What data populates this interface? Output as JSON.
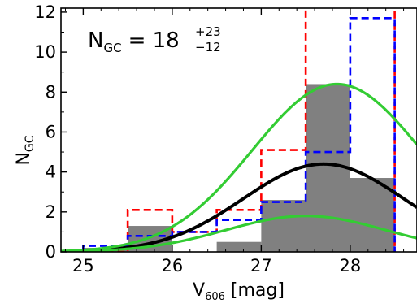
{
  "chart_data": {
    "type": "histogram",
    "xlabel": "V606 [mag]",
    "xlabel_parts": {
      "main": "V",
      "sub": "606",
      "rest": " [mag]"
    },
    "ylabel": "NGC",
    "ylabel_parts": {
      "main": "N",
      "sub": "GC"
    },
    "xlim": [
      24.75,
      28.75
    ],
    "ylim": [
      0,
      12.2
    ],
    "x_ticks": [
      25,
      26,
      27,
      28
    ],
    "y_ticks": [
      0,
      2,
      4,
      6,
      8,
      10,
      12
    ],
    "bin_edges": [
      25.0,
      25.5,
      26.0,
      26.5,
      27.0,
      27.5,
      28.0,
      28.5
    ],
    "annotation": {
      "text": "NGC = 18 +23 −12",
      "name": "N",
      "name_sub": "GC",
      "equals": "= 18",
      "plus": "+23",
      "minus": "−12"
    },
    "series": [
      {
        "kind": "bars",
        "color": "#808080",
        "values": [
          0.2,
          1.3,
          0.0,
          0.5,
          2.6,
          8.4,
          3.7
        ]
      },
      {
        "kind": "step",
        "style": "dashed",
        "color": "#ff0000",
        "values": [
          0.0,
          2.1,
          1.0,
          2.1,
          5.1,
          12.5,
          12.5
        ]
      },
      {
        "kind": "step",
        "style": "dashed",
        "color": "#0000ff",
        "values": [
          0.3,
          0.8,
          1.0,
          1.6,
          2.5,
          5.0,
          11.7
        ]
      },
      {
        "kind": "curve",
        "color": "#000000",
        "amplitude": 4.4,
        "mean": 27.7,
        "sigma": 0.9
      },
      {
        "kind": "curve",
        "color": "#33cc33",
        "amplitude": 8.4,
        "mean": 27.85,
        "sigma": 0.95
      },
      {
        "kind": "curve",
        "color": "#33cc33",
        "amplitude": 1.8,
        "mean": 27.5,
        "sigma": 0.9
      }
    ]
  }
}
